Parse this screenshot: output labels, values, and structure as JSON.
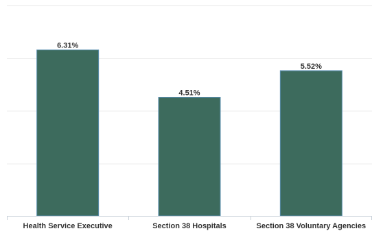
{
  "chart_data": {
    "type": "bar",
    "categories": [
      "Health Service Executive",
      "Section 38 Hospitals",
      "Section 38 Voluntary Agencies"
    ],
    "values": [
      6.31,
      4.51,
      5.52
    ],
    "value_labels": [
      "6.31%",
      "4.51%",
      "5.52%"
    ],
    "title": "",
    "xlabel": "",
    "ylabel": "",
    "ylim": [
      0,
      8
    ],
    "grid": true,
    "legend": "none",
    "bar_color": "#3d6b5d",
    "bar_border_color": "#5a8fb0"
  }
}
